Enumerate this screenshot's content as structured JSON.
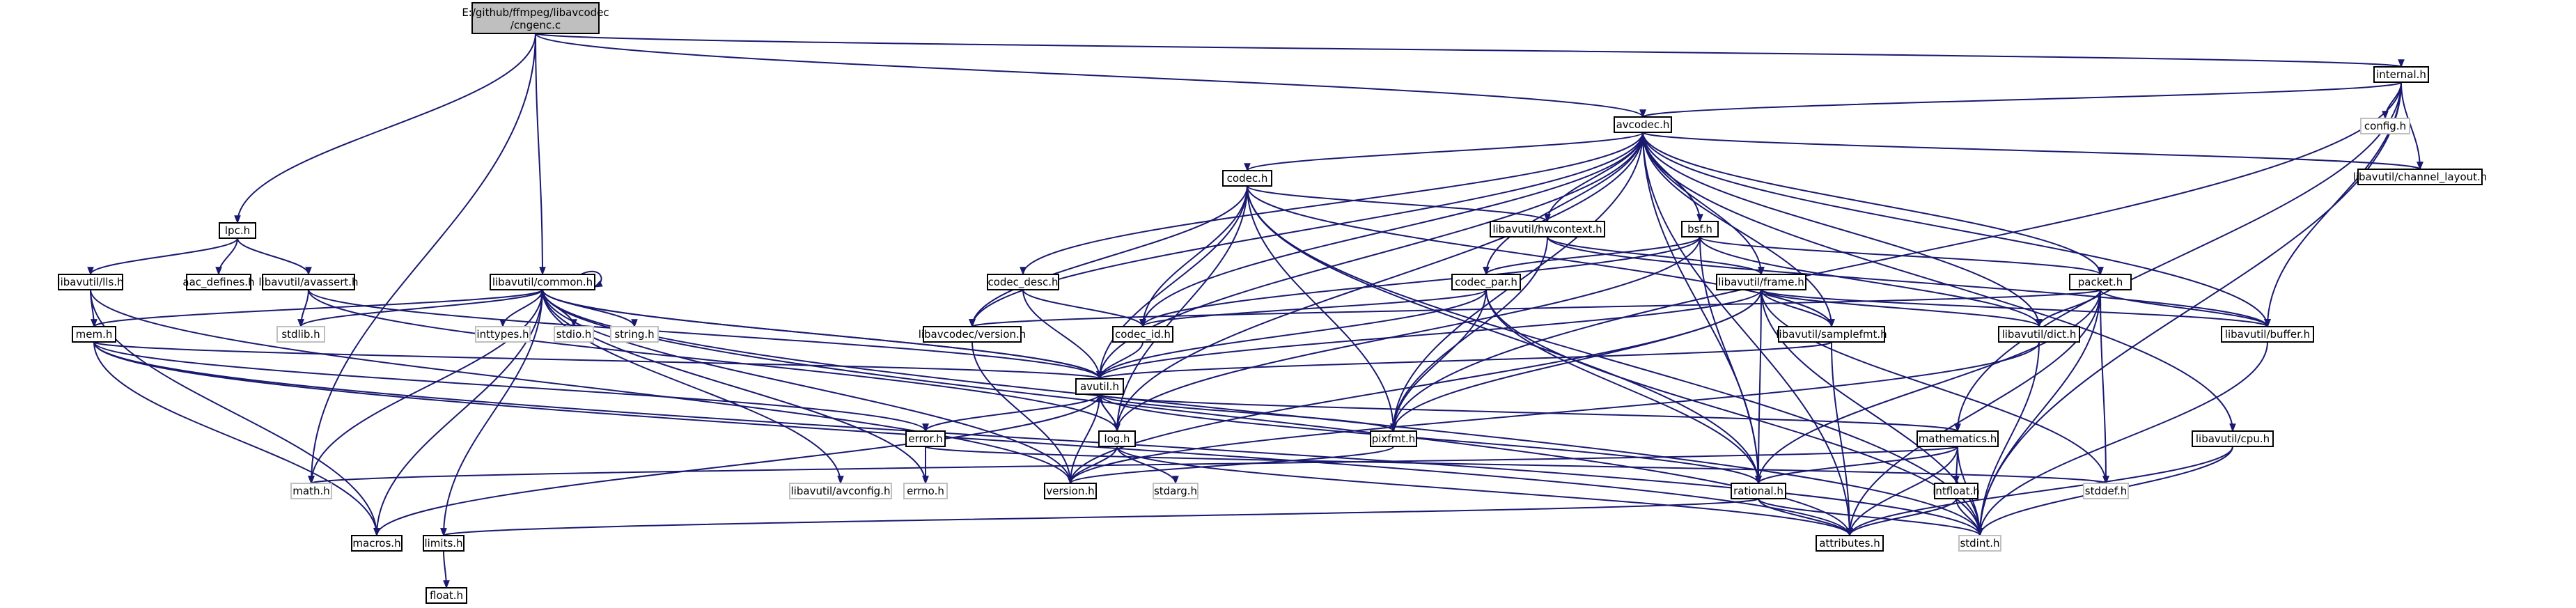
{
  "root": {
    "line1": "E:/github/ffmpeg/libavcodec",
    "line2": "/cngenc.c"
  },
  "nodes": [
    {
      "id": "internal",
      "label": "internal.h"
    },
    {
      "id": "config",
      "label": "config.h"
    },
    {
      "id": "avcodec",
      "label": "avcodec.h"
    },
    {
      "id": "codec",
      "label": "codec.h"
    },
    {
      "id": "channel_layout",
      "label": "libavutil/channel_layout.h"
    },
    {
      "id": "lpc",
      "label": "lpc.h"
    },
    {
      "id": "hwcontext",
      "label": "libavutil/hwcontext.h"
    },
    {
      "id": "bsf",
      "label": "bsf.h"
    },
    {
      "id": "lls",
      "label": "libavutil/lls.h"
    },
    {
      "id": "aac_defines",
      "label": "aac_defines.h"
    },
    {
      "id": "avassert",
      "label": "libavutil/avassert.h"
    },
    {
      "id": "common",
      "label": "libavutil/common.h"
    },
    {
      "id": "codec_desc",
      "label": "codec_desc.h"
    },
    {
      "id": "codec_par",
      "label": "codec_par.h"
    },
    {
      "id": "frame",
      "label": "libavutil/frame.h"
    },
    {
      "id": "packet",
      "label": "packet.h"
    },
    {
      "id": "mem",
      "label": "mem.h"
    },
    {
      "id": "stdlib",
      "label": "stdlib.h"
    },
    {
      "id": "inttypes",
      "label": "inttypes.h"
    },
    {
      "id": "stdio",
      "label": "stdio.h"
    },
    {
      "id": "string",
      "label": "string.h"
    },
    {
      "id": "lav_version",
      "label": "libavcodec/version.h"
    },
    {
      "id": "codec_id",
      "label": "codec_id.h"
    },
    {
      "id": "samplefmt",
      "label": "libavutil/samplefmt.h"
    },
    {
      "id": "dict",
      "label": "libavutil/dict.h"
    },
    {
      "id": "buffer",
      "label": "libavutil/buffer.h"
    },
    {
      "id": "avutil",
      "label": "avutil.h"
    },
    {
      "id": "error",
      "label": "error.h"
    },
    {
      "id": "log",
      "label": "log.h"
    },
    {
      "id": "pixfmt",
      "label": "pixfmt.h"
    },
    {
      "id": "mathematics",
      "label": "mathematics.h"
    },
    {
      "id": "cpu",
      "label": "libavutil/cpu.h"
    },
    {
      "id": "math",
      "label": "math.h"
    },
    {
      "id": "avconfig",
      "label": "libavutil/avconfig.h"
    },
    {
      "id": "errno",
      "label": "errno.h"
    },
    {
      "id": "version",
      "label": "version.h"
    },
    {
      "id": "stdarg",
      "label": "stdarg.h"
    },
    {
      "id": "rational",
      "label": "rational.h"
    },
    {
      "id": "intfloat",
      "label": "intfloat.h"
    },
    {
      "id": "stddef",
      "label": "stddef.h"
    },
    {
      "id": "macros",
      "label": "macros.h"
    },
    {
      "id": "limits",
      "label": "limits.h"
    },
    {
      "id": "attributes",
      "label": "attributes.h"
    },
    {
      "id": "stdint",
      "label": "stdint.h"
    },
    {
      "id": "float",
      "label": "float.h"
    }
  ],
  "edges": [
    [
      "root",
      "lpc"
    ],
    [
      "root",
      "common"
    ],
    [
      "root",
      "avcodec"
    ],
    [
      "root",
      "internal"
    ],
    [
      "root",
      "math"
    ],
    [
      "internal",
      "config"
    ],
    [
      "internal",
      "avcodec"
    ],
    [
      "internal",
      "channel_layout"
    ],
    [
      "internal",
      "buffer"
    ],
    [
      "internal",
      "pixfmt"
    ],
    [
      "internal",
      "mathematics"
    ],
    [
      "internal",
      "stdint"
    ],
    [
      "avcodec",
      "codec"
    ],
    [
      "avcodec",
      "channel_layout"
    ],
    [
      "avcodec",
      "hwcontext"
    ],
    [
      "avcodec",
      "bsf"
    ],
    [
      "avcodec",
      "codec_desc"
    ],
    [
      "avcodec",
      "codec_par"
    ],
    [
      "avcodec",
      "frame"
    ],
    [
      "avcodec",
      "packet"
    ],
    [
      "avcodec",
      "lav_version"
    ],
    [
      "avcodec",
      "codec_id"
    ],
    [
      "avcodec",
      "samplefmt"
    ],
    [
      "avcodec",
      "dict"
    ],
    [
      "avcodec",
      "buffer"
    ],
    [
      "avcodec",
      "avutil"
    ],
    [
      "avcodec",
      "log"
    ],
    [
      "avcodec",
      "pixfmt"
    ],
    [
      "avcodec",
      "rational"
    ],
    [
      "avcodec",
      "attributes"
    ],
    [
      "avcodec",
      "cpu"
    ],
    [
      "codec",
      "hwcontext"
    ],
    [
      "codec",
      "lav_version"
    ],
    [
      "codec",
      "codec_id"
    ],
    [
      "codec",
      "samplefmt"
    ],
    [
      "codec",
      "avutil"
    ],
    [
      "codec",
      "log"
    ],
    [
      "codec",
      "pixfmt"
    ],
    [
      "codec",
      "rational"
    ],
    [
      "codec",
      "stdint"
    ],
    [
      "hwcontext",
      "frame"
    ],
    [
      "hwcontext",
      "buffer"
    ],
    [
      "hwcontext",
      "pixfmt"
    ],
    [
      "bsf",
      "codec_id"
    ],
    [
      "bsf",
      "codec_par"
    ],
    [
      "bsf",
      "packet"
    ],
    [
      "bsf",
      "dict"
    ],
    [
      "bsf",
      "log"
    ],
    [
      "bsf",
      "rational"
    ],
    [
      "codec_desc",
      "codec_id"
    ],
    [
      "codec_desc",
      "avutil"
    ],
    [
      "codec_par",
      "codec_id"
    ],
    [
      "codec_par",
      "avutil"
    ],
    [
      "codec_par",
      "pixfmt"
    ],
    [
      "codec_par",
      "rational"
    ],
    [
      "codec_par",
      "stdint"
    ],
    [
      "frame",
      "samplefmt"
    ],
    [
      "frame",
      "dict"
    ],
    [
      "frame",
      "buffer"
    ],
    [
      "frame",
      "avutil"
    ],
    [
      "frame",
      "pixfmt"
    ],
    [
      "frame",
      "rational"
    ],
    [
      "frame",
      "version"
    ],
    [
      "frame",
      "stddef"
    ],
    [
      "frame",
      "stdint"
    ],
    [
      "packet",
      "lav_version"
    ],
    [
      "packet",
      "dict"
    ],
    [
      "packet",
      "buffer"
    ],
    [
      "packet",
      "rational"
    ],
    [
      "packet",
      "attributes"
    ],
    [
      "packet",
      "stddef"
    ],
    [
      "packet",
      "stdint"
    ],
    [
      "lpc",
      "lls"
    ],
    [
      "lpc",
      "aac_defines"
    ],
    [
      "lpc",
      "avassert"
    ],
    [
      "lls",
      "mem"
    ],
    [
      "lls",
      "macros"
    ],
    [
      "lls",
      "version"
    ],
    [
      "avassert",
      "stdlib"
    ],
    [
      "avassert",
      "avutil"
    ],
    [
      "avassert",
      "log"
    ],
    [
      "common",
      "mem"
    ],
    [
      "common",
      "stdlib"
    ],
    [
      "common",
      "inttypes"
    ],
    [
      "common",
      "stdio"
    ],
    [
      "common",
      "string"
    ],
    [
      "common",
      "avutil"
    ],
    [
      "common",
      "math"
    ],
    [
      "common",
      "errno"
    ],
    [
      "common",
      "avconfig"
    ],
    [
      "common",
      "version"
    ],
    [
      "common",
      "macros"
    ],
    [
      "common",
      "limits"
    ],
    [
      "common",
      "attributes"
    ],
    [
      "common",
      "stdint"
    ],
    [
      "common",
      "common"
    ],
    [
      "mem",
      "avutil"
    ],
    [
      "mem",
      "error"
    ],
    [
      "mem",
      "macros"
    ],
    [
      "mem",
      "attributes"
    ],
    [
      "mem",
      "stdint"
    ],
    [
      "lav_version",
      "version"
    ],
    [
      "codec_id",
      "avutil"
    ],
    [
      "samplefmt",
      "avutil"
    ],
    [
      "samplefmt",
      "attributes"
    ],
    [
      "dict",
      "version"
    ],
    [
      "dict",
      "stdint"
    ],
    [
      "buffer",
      "stdint"
    ],
    [
      "avutil",
      "error"
    ],
    [
      "avutil",
      "log"
    ],
    [
      "avutil",
      "pixfmt"
    ],
    [
      "avutil",
      "mathematics"
    ],
    [
      "avutil",
      "rational"
    ],
    [
      "avutil",
      "version"
    ],
    [
      "avutil",
      "macros"
    ],
    [
      "avutil",
      "common"
    ],
    [
      "error",
      "errno"
    ],
    [
      "error",
      "stddef"
    ],
    [
      "log",
      "avutil"
    ],
    [
      "log",
      "stdarg"
    ],
    [
      "log",
      "version"
    ],
    [
      "log",
      "attributes"
    ],
    [
      "pixfmt",
      "version"
    ],
    [
      "mathematics",
      "rational"
    ],
    [
      "mathematics",
      "intfloat"
    ],
    [
      "mathematics",
      "attributes"
    ],
    [
      "mathematics",
      "stdint"
    ],
    [
      "mathematics",
      "math"
    ],
    [
      "cpu",
      "attributes"
    ],
    [
      "cpu",
      "stdint"
    ],
    [
      "rational",
      "attributes"
    ],
    [
      "rational",
      "stdint"
    ],
    [
      "rational",
      "limits"
    ],
    [
      "intfloat",
      "attributes"
    ],
    [
      "intfloat",
      "stdint"
    ],
    [
      "limits",
      "float"
    ]
  ]
}
